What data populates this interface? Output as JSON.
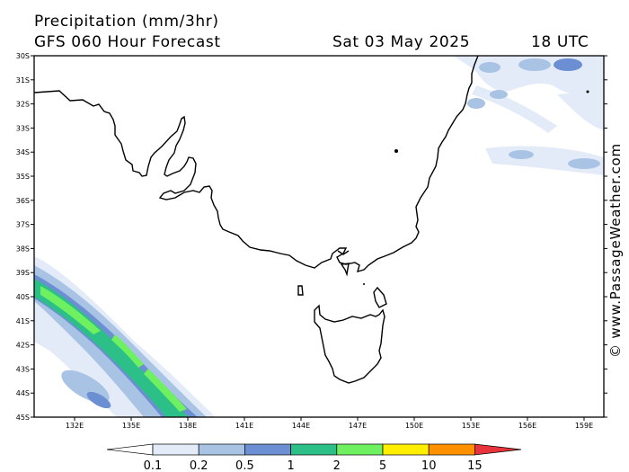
{
  "header": {
    "title": "Precipitation (mm/3hr)",
    "subtitle": "GFS 060 Hour Forecast",
    "date": "Sat 03 May 2025",
    "time": "18 UTC"
  },
  "credit": "© www.PassageWeather.com",
  "map": {
    "lat_labels": [
      "30S",
      "31S",
      "32S",
      "33S",
      "34S",
      "35S",
      "36S",
      "37S",
      "38S",
      "39S",
      "40S",
      "41S",
      "42S",
      "43S",
      "44S",
      "45S"
    ],
    "lon_labels": [
      "132E",
      "135E",
      "138E",
      "141E",
      "144E",
      "147E",
      "150E",
      "153E",
      "156E",
      "159E"
    ]
  },
  "legend": {
    "labels": [
      "0.1",
      "0.2",
      "0.5",
      "1",
      "2",
      "5",
      "10",
      "15"
    ],
    "colors": {
      "0.1": "#e2ebf7",
      "0.2": "#a9c3e5",
      "0.5": "#6b8fd2",
      "1": "#2dbf88",
      "2": "#6ef060",
      "5": "#ffee00",
      "10": "#ff9000",
      "15": "#e8343c"
    }
  }
}
